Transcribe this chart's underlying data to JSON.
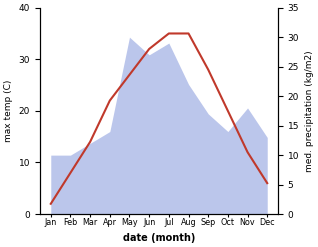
{
  "months": [
    "Jan",
    "Feb",
    "Mar",
    "Apr",
    "May",
    "Jun",
    "Jul",
    "Aug",
    "Sep",
    "Oct",
    "Nov",
    "Dec"
  ],
  "temperature": [
    2,
    8,
    14,
    22,
    27,
    32,
    35,
    35,
    28,
    20,
    12,
    6
  ],
  "precipitation": [
    10,
    10,
    12,
    14,
    30,
    27,
    29,
    22,
    17,
    14,
    18,
    13
  ],
  "temp_color": "#c0392b",
  "precip_color": "#b0bce8",
  "xlabel": "date (month)",
  "ylabel_left": "max temp (C)",
  "ylabel_right": "med. precipitation (kg/m2)",
  "ylim_left": [
    0,
    40
  ],
  "ylim_right": [
    0,
    35
  ],
  "yticks_left": [
    0,
    10,
    20,
    30,
    40
  ],
  "yticks_right": [
    0,
    5,
    10,
    15,
    20,
    25,
    30,
    35
  ],
  "background_color": "#ffffff"
}
